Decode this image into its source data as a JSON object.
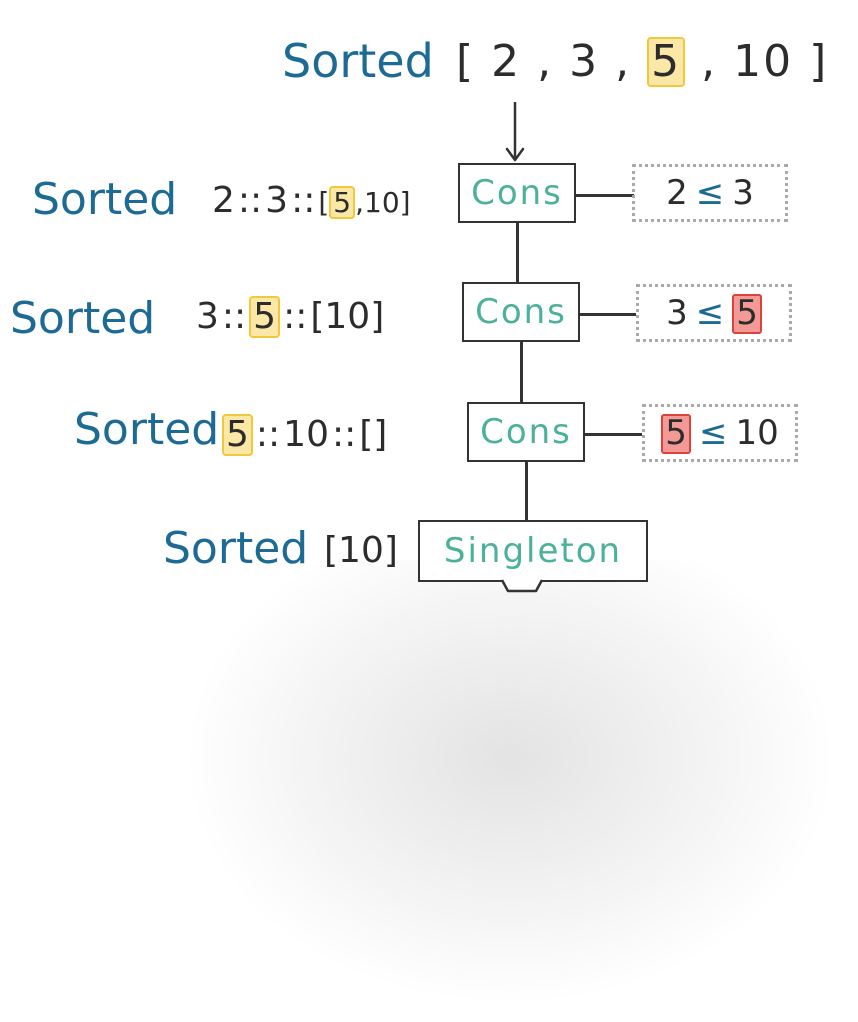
{
  "sorted_word": "Sorted",
  "operators": {
    "cons": "::",
    "le": "≤"
  },
  "top": {
    "open": "[",
    "items": [
      "2",
      "3",
      "5",
      "10"
    ],
    "comma": ",",
    "close": "]"
  },
  "rows": [
    {
      "expr": {
        "a": "2",
        "b": "3",
        "list_open": "[",
        "highlight": "5",
        "comma": ",",
        "tail": "10",
        "list_close": "]"
      },
      "node": "Cons",
      "condition": {
        "left": "2",
        "right": "3"
      }
    },
    {
      "expr": {
        "a": "3",
        "highlight": "5",
        "list_open": "[",
        "tail": "10",
        "list_close": "]"
      },
      "node": "Cons",
      "condition": {
        "left": "3",
        "right": "5"
      }
    },
    {
      "expr": {
        "highlight": "5",
        "b": "10",
        "empty": "[]"
      },
      "node": "Cons",
      "condition": {
        "left": "5",
        "right": "10"
      }
    }
  ],
  "last": {
    "expr": "[10]",
    "node": "Singleton"
  },
  "colors": {
    "label_blue": "#1d6b95",
    "node_teal": "#4bb19b",
    "highlight_yellow": "#fbe8a6",
    "highlight_red": "#f39a96",
    "ink": "#2c2c2c"
  }
}
